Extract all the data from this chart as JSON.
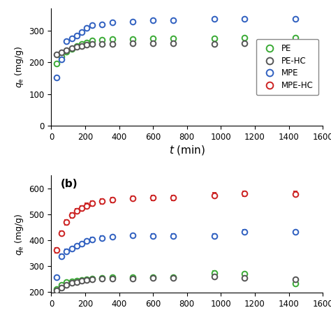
{
  "panel_a": {
    "ylabel": "$q_{\\rm e}$ (mg/g)",
    "xlabel": "$\\mathit{t}$ (min)",
    "xlim": [
      0,
      1600
    ],
    "ylim": [
      0,
      370
    ],
    "yticks": [
      0,
      100,
      200,
      300
    ],
    "xticks": [
      0,
      200,
      400,
      600,
      800,
      1000,
      1200,
      1400,
      1600
    ],
    "series": {
      "PE": {
        "color": "#3aaa35",
        "x": [
          30,
          60,
          90,
          120,
          150,
          180,
          210,
          240,
          300,
          360,
          480,
          600,
          720,
          960,
          1140,
          1440
        ],
        "y": [
          196,
          218,
          233,
          242,
          250,
          257,
          263,
          268,
          270,
          272,
          273,
          275,
          276,
          276,
          278,
          277
        ],
        "yerr": [
          4,
          4,
          4,
          4,
          4,
          4,
          4,
          4,
          4,
          4,
          4,
          4,
          4,
          4,
          4,
          4
        ]
      },
      "PE-HC": {
        "color": "#555555",
        "x": [
          30,
          60,
          90,
          120,
          150,
          180,
          210,
          240,
          300,
          360,
          480,
          600,
          720,
          960,
          1140,
          1440
        ],
        "y": [
          224,
          232,
          238,
          244,
          249,
          252,
          255,
          257,
          258,
          258,
          259,
          259,
          259,
          258,
          259,
          259
        ],
        "yerr": [
          4,
          4,
          4,
          4,
          4,
          4,
          4,
          4,
          4,
          4,
          4,
          4,
          4,
          4,
          4,
          4
        ]
      },
      "MPE": {
        "color": "#3060c0",
        "x": [
          30,
          60,
          90,
          120,
          150,
          180,
          210,
          240,
          300,
          360,
          480,
          600,
          720,
          960,
          1140,
          1440
        ],
        "y": [
          152,
          210,
          266,
          276,
          285,
          296,
          309,
          316,
          320,
          325,
          329,
          332,
          333,
          336,
          337,
          337
        ],
        "yerr": [
          4,
          4,
          4,
          4,
          4,
          4,
          4,
          4,
          4,
          4,
          4,
          4,
          4,
          4,
          4,
          4
        ]
      }
    },
    "legend_labels": [
      "PE",
      "PE-HC",
      "MPE",
      "MPE-HC"
    ],
    "legend_colors": [
      "#3aaa35",
      "#555555",
      "#3060c0",
      "#cc2222"
    ]
  },
  "panel_b": {
    "ylabel": "$q_{\\rm e}$ (mg/g)",
    "xlim": [
      0,
      1600
    ],
    "ylim": [
      195,
      650
    ],
    "yticks": [
      200,
      300,
      400,
      500,
      600
    ],
    "xticks": [
      0,
      200,
      400,
      600,
      800,
      1000,
      1200,
      1400,
      1600
    ],
    "series": {
      "PE": {
        "color": "#3aaa35",
        "x": [
          30,
          60,
          90,
          120,
          150,
          180,
          210,
          240,
          300,
          360,
          480,
          600,
          720,
          960,
          1140,
          1440
        ],
        "y": [
          210,
          226,
          236,
          240,
          242,
          245,
          248,
          251,
          253,
          255,
          255,
          257,
          256,
          273,
          268,
          232
        ],
        "yerr": [
          5,
          5,
          5,
          5,
          5,
          5,
          5,
          5,
          5,
          5,
          5,
          5,
          5,
          8,
          8,
          8
        ]
      },
      "PE-HC": {
        "color": "#555555",
        "x": [
          30,
          60,
          90,
          120,
          150,
          180,
          210,
          240,
          300,
          360,
          480,
          600,
          720,
          960,
          1140,
          1440
        ],
        "y": [
          205,
          215,
          226,
          233,
          237,
          241,
          244,
          247,
          249,
          250,
          251,
          253,
          252,
          258,
          253,
          248
        ],
        "yerr": [
          5,
          5,
          5,
          5,
          5,
          5,
          5,
          5,
          5,
          5,
          5,
          5,
          5,
          6,
          6,
          6
        ]
      },
      "MPE": {
        "color": "#3060c0",
        "x": [
          30,
          60,
          90,
          120,
          150,
          180,
          210,
          240,
          300,
          360,
          480,
          600,
          720,
          960,
          1140,
          1440
        ],
        "y": [
          255,
          337,
          357,
          366,
          377,
          385,
          395,
          402,
          407,
          412,
          417,
          415,
          416,
          416,
          432,
          430
        ],
        "yerr": [
          7,
          7,
          7,
          7,
          7,
          7,
          7,
          7,
          7,
          7,
          7,
          7,
          7,
          7,
          7,
          7
        ]
      },
      "MPE-HC": {
        "color": "#cc2222",
        "x": [
          30,
          60,
          90,
          120,
          150,
          180,
          210,
          240,
          300,
          360,
          480,
          600,
          720,
          960,
          1140,
          1440
        ],
        "y": [
          360,
          426,
          468,
          495,
          512,
          522,
          532,
          541,
          549,
          555,
          561,
          563,
          563,
          573,
          579,
          578
        ],
        "yerr": [
          9,
          9,
          9,
          9,
          9,
          9,
          9,
          9,
          9,
          9,
          9,
          9,
          9,
          10,
          10,
          10
        ]
      }
    }
  }
}
